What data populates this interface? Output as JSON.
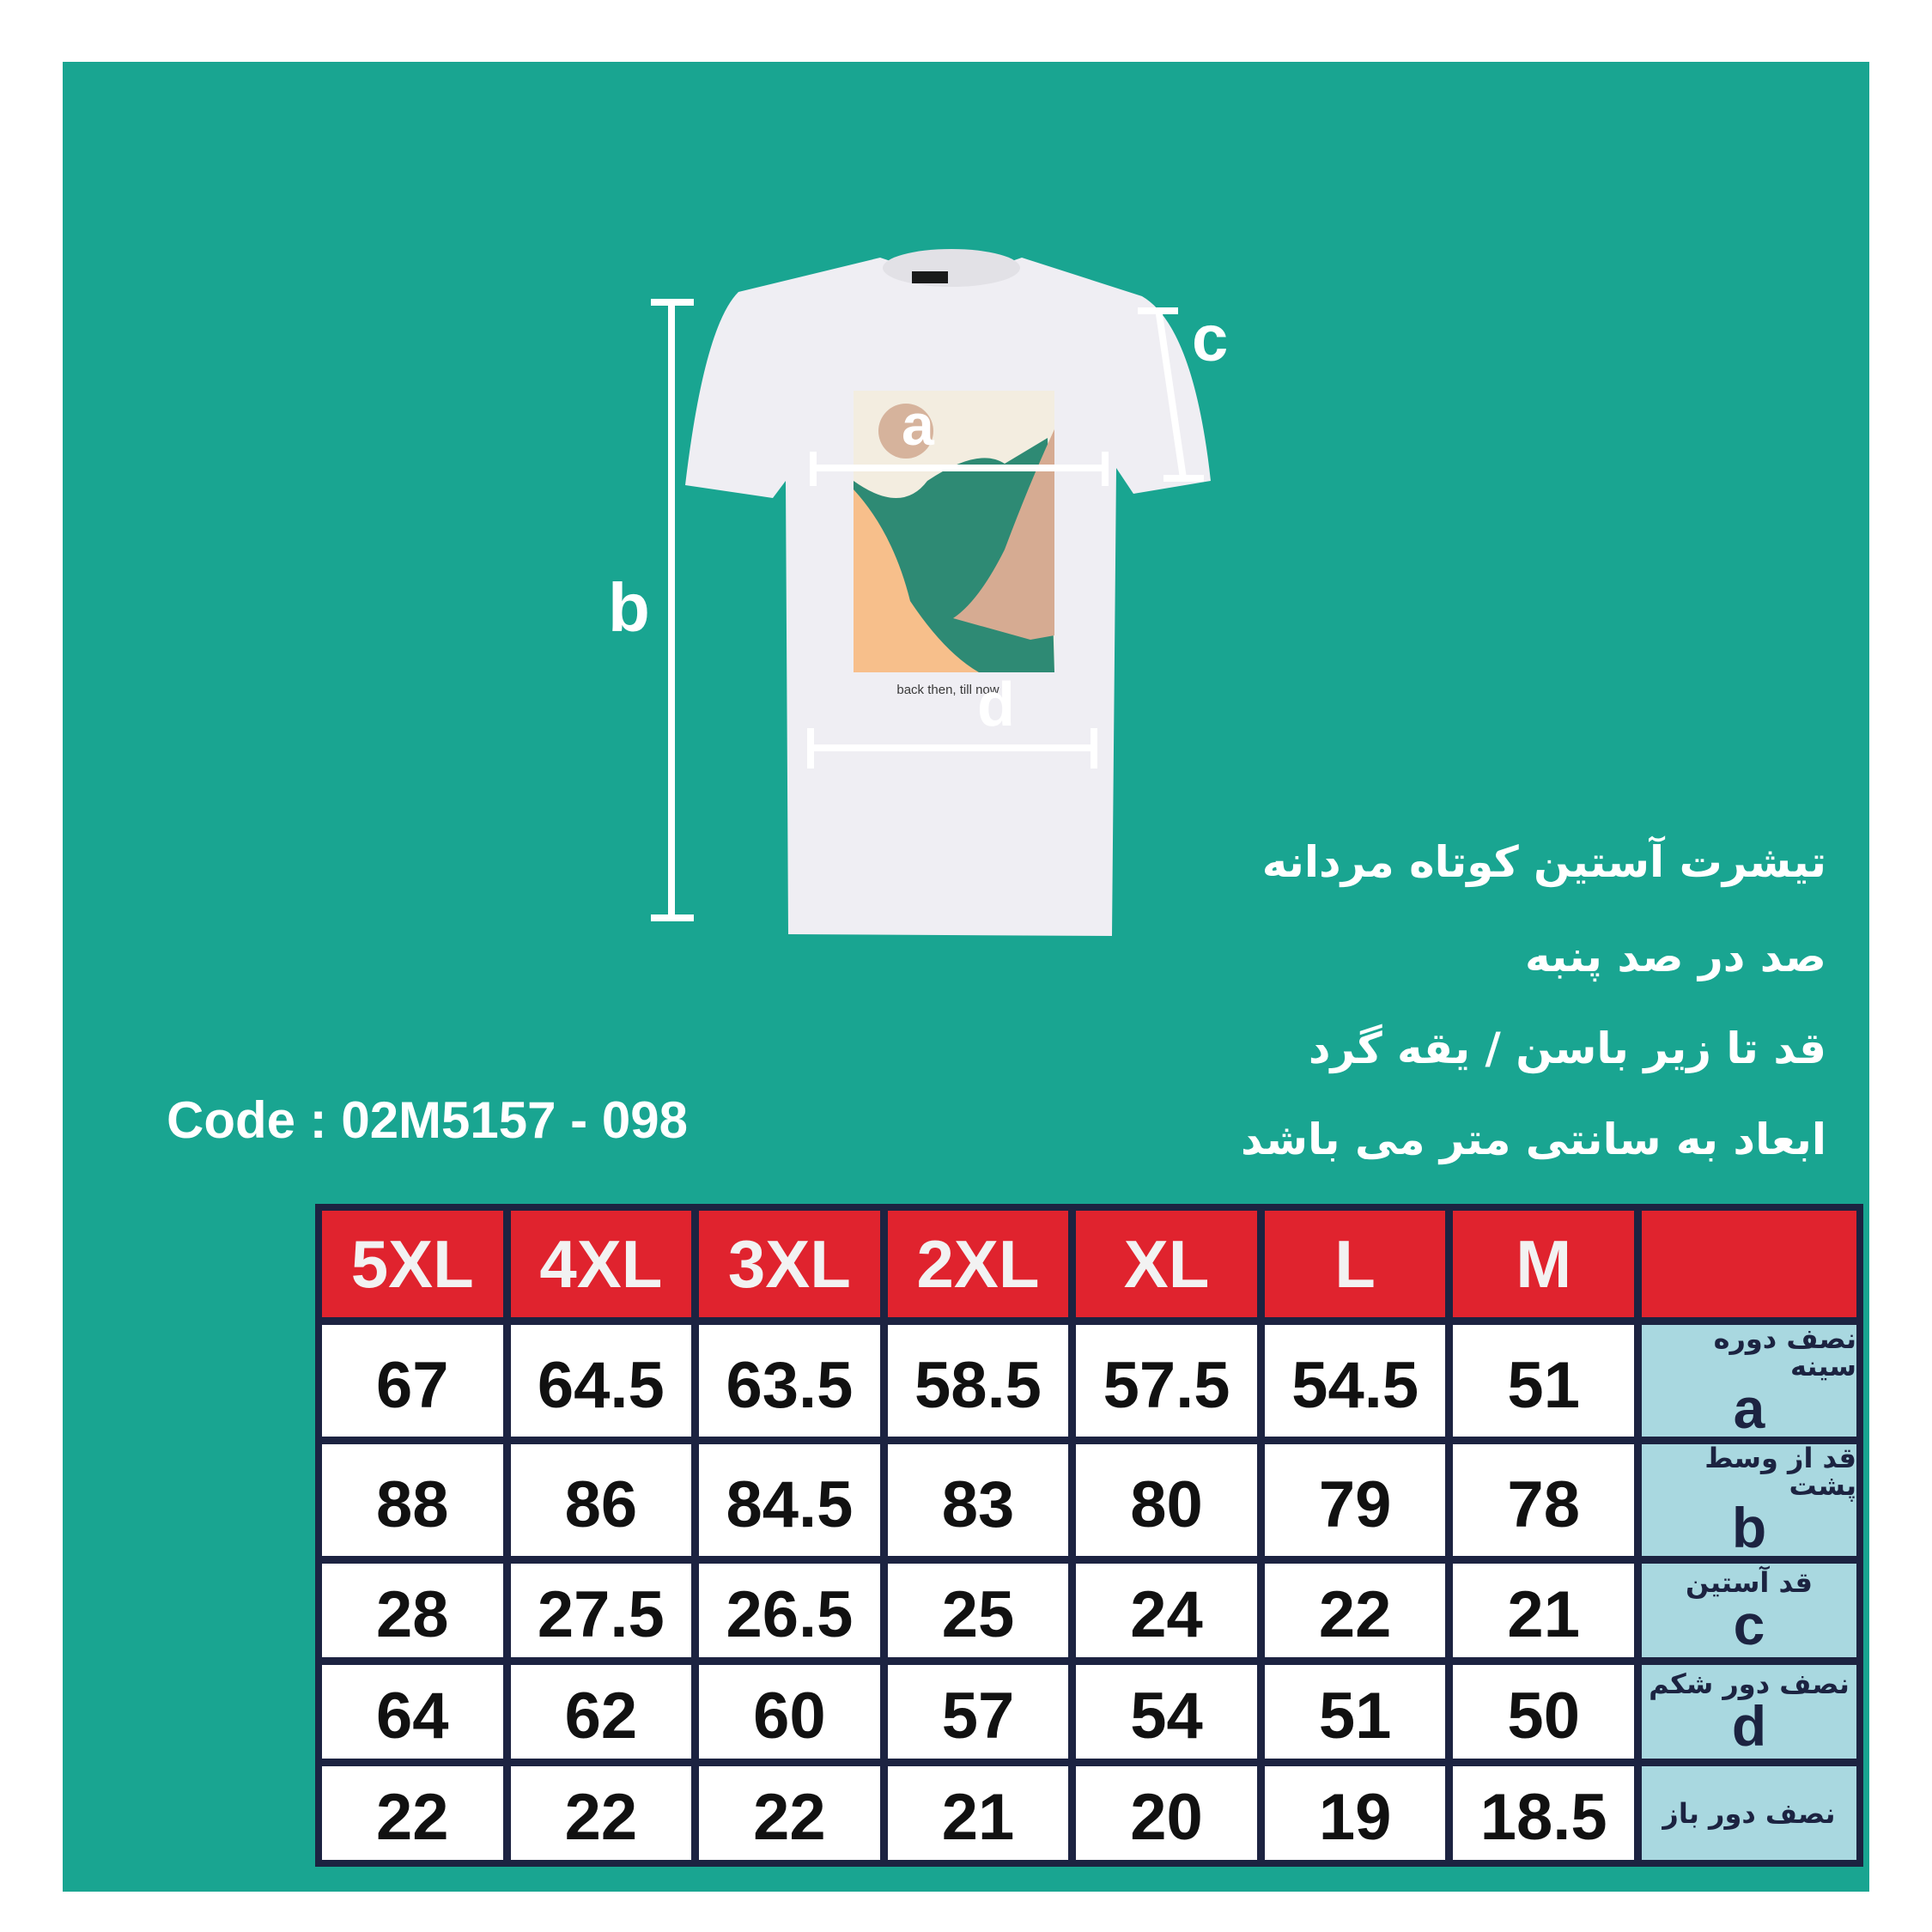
{
  "colors": {
    "background": "#19a591",
    "header": "#e0232e",
    "border": "#1c2341",
    "label_cell": "#a9d8e0"
  },
  "diagram": {
    "labels": {
      "a": "a",
      "b": "b",
      "c": "c",
      "d": "d"
    },
    "print_text": "back then, till now"
  },
  "description": [
    "تیشرت آستین کوتاه مردانه",
    "صد در صد پنبه",
    "قد تا زیر باسن / یقه گرد",
    "ابعاد به سانتی متر می باشد"
  ],
  "code": "Code : 02M5157 - 098",
  "table": {
    "sizes": [
      "5XL",
      "4XL",
      "3XL",
      "2XL",
      "XL",
      "L",
      "M"
    ],
    "header_label": "",
    "rows": [
      {
        "label": "نصف دوره سینه",
        "letter": "a",
        "values": [
          "67",
          "64.5",
          "63.5",
          "58.5",
          "57.5",
          "54.5",
          "51"
        ]
      },
      {
        "label": "قد از وسط پشت",
        "letter": "b",
        "values": [
          "88",
          "86",
          "84.5",
          "83",
          "80",
          "79",
          "78"
        ]
      },
      {
        "label": "قد آستین",
        "letter": "c",
        "values": [
          "28",
          "27.5",
          "26.5",
          "25",
          "24",
          "22",
          "21"
        ]
      },
      {
        "label": "نصف دور شکم",
        "letter": "d",
        "values": [
          "64",
          "62",
          "60",
          "57",
          "54",
          "51",
          "50"
        ]
      },
      {
        "label": "نصف دور باز",
        "letter": "",
        "values": [
          "22",
          "22",
          "22",
          "21",
          "20",
          "19",
          "18.5"
        ]
      }
    ]
  }
}
